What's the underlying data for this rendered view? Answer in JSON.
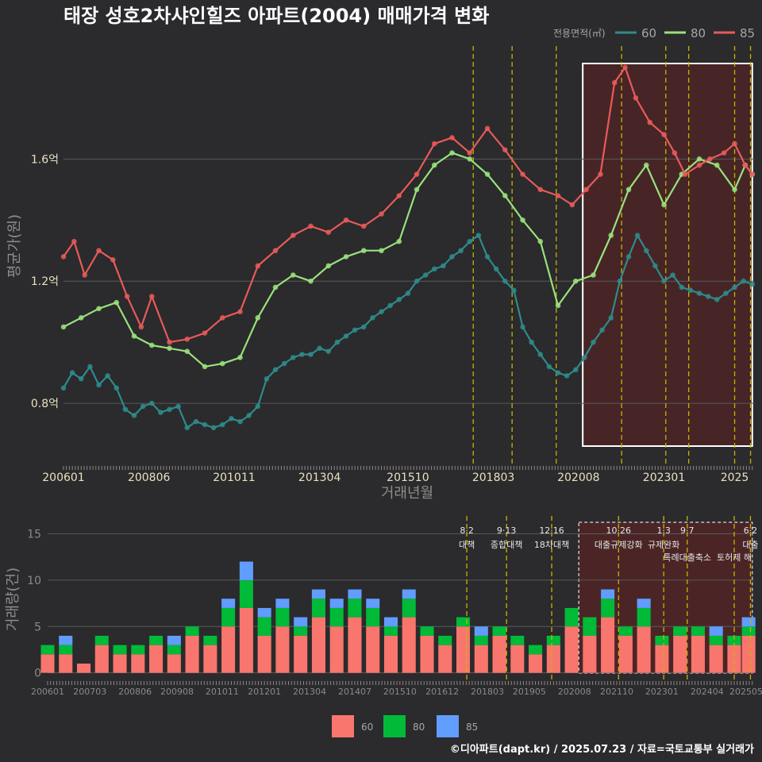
{
  "title": "태장 성호2차샤인힐즈 아파트(2004) 매매가격 변화",
  "credit": "©디아파트(dapt.kr) / 2025.07.23 / 자료=국토교통부 실거래가",
  "colors": {
    "s60": "#2e8b8b",
    "s80": "#98e27c",
    "s85": "#e85a5a",
    "v60": "#f8766d",
    "v80": "#00ba38",
    "v85": "#619cff",
    "policy": "#c8b400",
    "highlight": "#6b1f1f"
  },
  "chart_data": [
    {
      "type": "line",
      "ylabel": "평균가(원)",
      "xlabel": "거래년월",
      "y_ticks": [
        "0.8억",
        "1.2억",
        "1.6억"
      ],
      "y_tick_values": [
        0.8,
        1.2,
        1.6
      ],
      "ylim": [
        0.6,
        1.97
      ],
      "x_ticks": [
        "200601",
        "200806",
        "201011",
        "201304",
        "201510",
        "201803",
        "202008",
        "202301",
        "2025"
      ],
      "x_tick_values": [
        2006.0,
        2008.42,
        2010.83,
        2013.25,
        2015.75,
        2018.17,
        2020.58,
        2023.0,
        2025.0
      ],
      "xlim": [
        2006.0,
        2025.55
      ],
      "legend_title": "전용면적(㎡)",
      "legend_position": "top-right",
      "highlight_range": [
        2020.7,
        2025.5
      ],
      "policy_dates": [
        2017.6,
        2018.7,
        2019.95,
        2021.8,
        2023.05,
        2023.7,
        2025.0,
        2025.45
      ],
      "series": [
        {
          "name": "60",
          "x": [
            2006.0,
            2006.25,
            2006.5,
            2006.75,
            2007.0,
            2007.25,
            2007.5,
            2007.75,
            2008.0,
            2008.25,
            2008.5,
            2008.75,
            2009.0,
            2009.25,
            2009.5,
            2009.75,
            2010.0,
            2010.25,
            2010.5,
            2010.75,
            2011.0,
            2011.25,
            2011.5,
            2011.75,
            2012.0,
            2012.25,
            2012.5,
            2012.75,
            2013.0,
            2013.25,
            2013.5,
            2013.75,
            2014.0,
            2014.25,
            2014.5,
            2014.75,
            2015.0,
            2015.25,
            2015.5,
            2015.75,
            2016.0,
            2016.25,
            2016.5,
            2016.75,
            2017.0,
            2017.25,
            2017.5,
            2017.75,
            2018.0,
            2018.25,
            2018.5,
            2018.75,
            2019.0,
            2019.25,
            2019.5,
            2019.75,
            2020.0,
            2020.25,
            2020.5,
            2020.75,
            2021.0,
            2021.25,
            2021.5,
            2021.75,
            2022.0,
            2022.25,
            2022.5,
            2022.75,
            2023.0,
            2023.25,
            2023.5,
            2023.75,
            2024.0,
            2024.25,
            2024.5,
            2024.75,
            2025.0,
            2025.25,
            2025.5
          ],
          "y": [
            0.85,
            0.9,
            0.88,
            0.92,
            0.86,
            0.89,
            0.85,
            0.78,
            0.76,
            0.79,
            0.8,
            0.77,
            0.78,
            0.79,
            0.72,
            0.74,
            0.73,
            0.72,
            0.73,
            0.75,
            0.74,
            0.76,
            0.79,
            0.88,
            0.91,
            0.93,
            0.95,
            0.96,
            0.96,
            0.98,
            0.97,
            1.0,
            1.02,
            1.04,
            1.05,
            1.08,
            1.1,
            1.12,
            1.14,
            1.16,
            1.2,
            1.22,
            1.24,
            1.25,
            1.28,
            1.3,
            1.33,
            1.35,
            1.28,
            1.24,
            1.2,
            1.17,
            1.05,
            1.0,
            0.96,
            0.92,
            0.9,
            0.89,
            0.91,
            0.95,
            1.0,
            1.04,
            1.08,
            1.2,
            1.28,
            1.35,
            1.3,
            1.25,
            1.2,
            1.22,
            1.18,
            1.17,
            1.16,
            1.15,
            1.14,
            1.16,
            1.18,
            1.2,
            1.19
          ]
        },
        {
          "name": "80",
          "x": [
            2006.0,
            2006.5,
            2007.0,
            2007.5,
            2008.0,
            2008.5,
            2009.0,
            2009.5,
            2010.0,
            2010.5,
            2011.0,
            2011.5,
            2012.0,
            2012.5,
            2013.0,
            2013.5,
            2014.0,
            2014.5,
            2015.0,
            2015.5,
            2016.0,
            2016.5,
            2017.0,
            2017.5,
            2018.0,
            2018.5,
            2019.0,
            2019.5,
            2020.0,
            2020.5,
            2021.0,
            2021.5,
            2022.0,
            2022.5,
            2023.0,
            2023.5,
            2024.0,
            2024.5,
            2025.0,
            2025.3,
            2025.5
          ],
          "y": [
            1.05,
            1.08,
            1.11,
            1.13,
            1.02,
            0.99,
            0.98,
            0.97,
            0.92,
            0.93,
            0.95,
            1.08,
            1.18,
            1.22,
            1.2,
            1.25,
            1.28,
            1.3,
            1.3,
            1.33,
            1.5,
            1.58,
            1.62,
            1.6,
            1.55,
            1.48,
            1.4,
            1.33,
            1.12,
            1.2,
            1.22,
            1.35,
            1.5,
            1.58,
            1.45,
            1.55,
            1.6,
            1.58,
            1.5,
            1.58,
            1.55
          ]
        },
        {
          "name": "85",
          "x": [
            2006.0,
            2006.3,
            2006.6,
            2007.0,
            2007.4,
            2007.8,
            2008.2,
            2008.5,
            2009.0,
            2009.5,
            2010.0,
            2010.5,
            2011.0,
            2011.5,
            2012.0,
            2012.5,
            2013.0,
            2013.5,
            2014.0,
            2014.5,
            2015.0,
            2015.5,
            2016.0,
            2016.5,
            2017.0,
            2017.5,
            2018.0,
            2018.5,
            2019.0,
            2019.5,
            2020.0,
            2020.4,
            2020.8,
            2021.2,
            2021.6,
            2021.9,
            2022.2,
            2022.6,
            2023.0,
            2023.3,
            2023.6,
            2024.0,
            2024.3,
            2024.7,
            2025.0,
            2025.3,
            2025.5
          ],
          "y": [
            1.28,
            1.33,
            1.22,
            1.3,
            1.27,
            1.15,
            1.05,
            1.15,
            1.0,
            1.01,
            1.03,
            1.08,
            1.1,
            1.25,
            1.3,
            1.35,
            1.38,
            1.36,
            1.4,
            1.38,
            1.42,
            1.48,
            1.55,
            1.65,
            1.67,
            1.62,
            1.7,
            1.63,
            1.55,
            1.5,
            1.48,
            1.45,
            1.5,
            1.55,
            1.85,
            1.9,
            1.8,
            1.72,
            1.68,
            1.62,
            1.55,
            1.58,
            1.6,
            1.62,
            1.65,
            1.58,
            1.55
          ]
        }
      ]
    },
    {
      "type": "bar",
      "stacked": true,
      "ylabel": "거래량(건)",
      "y_ticks": [
        "0",
        "5",
        "10",
        "15"
      ],
      "y_tick_values": [
        0,
        5,
        10,
        15
      ],
      "ylim": [
        -0.8,
        16.5
      ],
      "x_ticks": [
        "200601",
        "200703",
        "200806",
        "200908",
        "201011",
        "201201",
        "201304",
        "201407",
        "201510",
        "201612",
        "201803",
        "201905",
        "202008",
        "202110",
        "202301",
        "202404",
        "202505"
      ],
      "x_tick_values": [
        2006.0,
        2007.17,
        2008.42,
        2009.58,
        2010.83,
        2012.0,
        2013.25,
        2014.5,
        2015.75,
        2016.92,
        2018.17,
        2019.33,
        2020.58,
        2021.75,
        2023.0,
        2024.25,
        2025.33
      ],
      "legend": [
        "60",
        "80",
        "85"
      ],
      "legend_position": "bottom",
      "highlight_range": [
        2020.7,
        2025.5
      ],
      "annotations": [
        {
          "date": "8·2",
          "text": "대책",
          "x": 2017.6
        },
        {
          "date": "9·13",
          "text": "종합대책",
          "x": 2018.7
        },
        {
          "date": "12·16",
          "text": "18차대책",
          "x": 2019.95
        },
        {
          "date": "10·26",
          "text": "대출규제강화",
          "x": 2021.8
        },
        {
          "date": "1·3",
          "text": "규제완화",
          "x": 2023.05
        },
        {
          "date": "9·7",
          "text": "특례대출축소",
          "x": 2023.7
        },
        {
          "date": "",
          "text": "토허제 해",
          "x": 2025.0
        },
        {
          "date": "6·2",
          "text": "대출",
          "x": 2025.45
        }
      ],
      "series": [
        {
          "name": "60",
          "x": [
            2006.0,
            2006.5,
            2007.0,
            2007.5,
            2008.0,
            2008.5,
            2009.0,
            2009.5,
            2010.0,
            2010.5,
            2011.0,
            2011.5,
            2012.0,
            2012.5,
            2013.0,
            2013.5,
            2014.0,
            2014.5,
            2015.0,
            2015.5,
            2016.0,
            2016.5,
            2017.0,
            2017.5,
            2018.0,
            2018.5,
            2019.0,
            2019.5,
            2020.0,
            2020.5,
            2021.0,
            2021.5,
            2022.0,
            2022.5,
            2023.0,
            2023.5,
            2024.0,
            2024.5,
            2025.0,
            2025.4
          ],
          "values": [
            2,
            2,
            1,
            3,
            2,
            2,
            3,
            2,
            4,
            3,
            5,
            7,
            4,
            5,
            4,
            6,
            5,
            6,
            5,
            4,
            6,
            4,
            3,
            5,
            3,
            4,
            3,
            2,
            3,
            5,
            4,
            6,
            4,
            5,
            3,
            4,
            4,
            3,
            3,
            4
          ]
        },
        {
          "name": "80",
          "x": [
            2006.0,
            2006.5,
            2007.0,
            2007.5,
            2008.0,
            2008.5,
            2009.0,
            2009.5,
            2010.0,
            2010.5,
            2011.0,
            2011.5,
            2012.0,
            2012.5,
            2013.0,
            2013.5,
            2014.0,
            2014.5,
            2015.0,
            2015.5,
            2016.0,
            2016.5,
            2017.0,
            2017.5,
            2018.0,
            2018.5,
            2019.0,
            2019.5,
            2020.0,
            2020.5,
            2021.0,
            2021.5,
            2022.0,
            2022.5,
            2023.0,
            2023.5,
            2024.0,
            2024.5,
            2025.0,
            2025.4
          ],
          "values": [
            1,
            1,
            0,
            1,
            1,
            1,
            1,
            1,
            1,
            1,
            2,
            3,
            2,
            2,
            1,
            2,
            2,
            2,
            2,
            1,
            2,
            1,
            1,
            1,
            1,
            1,
            1,
            1,
            1,
            2,
            2,
            2,
            1,
            2,
            1,
            1,
            1,
            1,
            1,
            1
          ]
        },
        {
          "name": "85",
          "x": [
            2006.0,
            2006.5,
            2007.0,
            2007.5,
            2008.0,
            2008.5,
            2009.0,
            2009.5,
            2010.0,
            2010.5,
            2011.0,
            2011.5,
            2012.0,
            2012.5,
            2013.0,
            2013.5,
            2014.0,
            2014.5,
            2015.0,
            2015.5,
            2016.0,
            2016.5,
            2017.0,
            2017.5,
            2018.0,
            2018.5,
            2019.0,
            2019.5,
            2020.0,
            2020.5,
            2021.0,
            2021.5,
            2022.0,
            2022.5,
            2023.0,
            2023.5,
            2024.0,
            2024.5,
            2025.0,
            2025.4
          ],
          "values": [
            0,
            1,
            0,
            0,
            0,
            0,
            0,
            1,
            0,
            0,
            1,
            2,
            1,
            1,
            1,
            1,
            1,
            1,
            1,
            1,
            1,
            0,
            0,
            0,
            1,
            0,
            0,
            0,
            0,
            0,
            0,
            1,
            0,
            1,
            0,
            0,
            0,
            1,
            0,
            1
          ]
        }
      ]
    }
  ]
}
